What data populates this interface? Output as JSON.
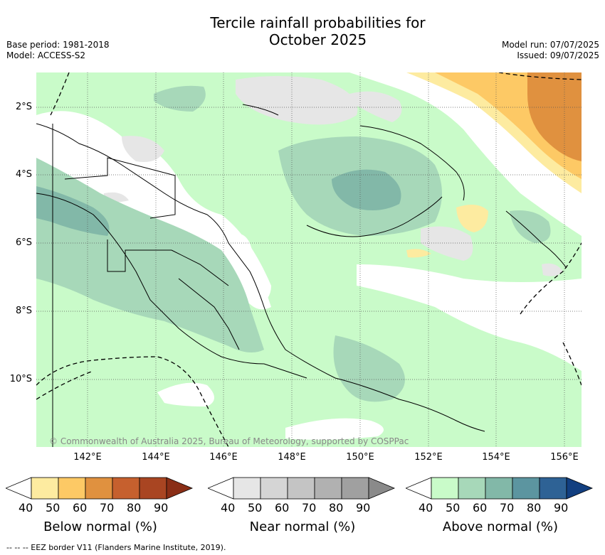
{
  "title_line1": "Tercile rainfall probabilities for",
  "title_line2": "October 2025",
  "base_period": "Base period: 1981-2018",
  "model": "Model: ACCESS-S2",
  "model_run": "Model run: 07/07/2025",
  "issued": "Issued: 09/07/2025",
  "copyright": "© Commonwealth of Australia 2025, Bureau of Meteorology, supported by COSPPac",
  "lat_labels": [
    "2°S",
    "4°S",
    "6°S",
    "8°S",
    "10°S"
  ],
  "lon_labels": [
    "142°E",
    "144°E",
    "146°E",
    "148°E",
    "150°E",
    "152°E",
    "154°E",
    "156°E"
  ],
  "colorbars": [
    {
      "label": "Below normal (%)",
      "ticks": [
        "40",
        "50",
        "60",
        "70",
        "80",
        "90"
      ],
      "colors": [
        "#ffffff",
        "#fdeba0",
        "#fdc965",
        "#e0913f",
        "#c6602e",
        "#a94522",
        "#8a2e16"
      ]
    },
    {
      "label": "Near normal (%)",
      "ticks": [
        "40",
        "50",
        "60",
        "70",
        "80",
        "90"
      ],
      "colors": [
        "#ffffff",
        "#e6e6e6",
        "#d5d5d5",
        "#c4c4c4",
        "#b1b1b1",
        "#a0a0a0",
        "#8a8a8a"
      ]
    },
    {
      "label": "Above normal (%)",
      "ticks": [
        "40",
        "50",
        "60",
        "70",
        "80",
        "90"
      ],
      "colors": [
        "#ffffff",
        "#c9fbc9",
        "#a7d8b9",
        "#82b8a8",
        "#5c95a0",
        "#2e6295",
        "#123f80"
      ]
    }
  ],
  "footnote": "--  --  -- EEZ border V11 (Flanders Marine Institute, 2019)."
}
